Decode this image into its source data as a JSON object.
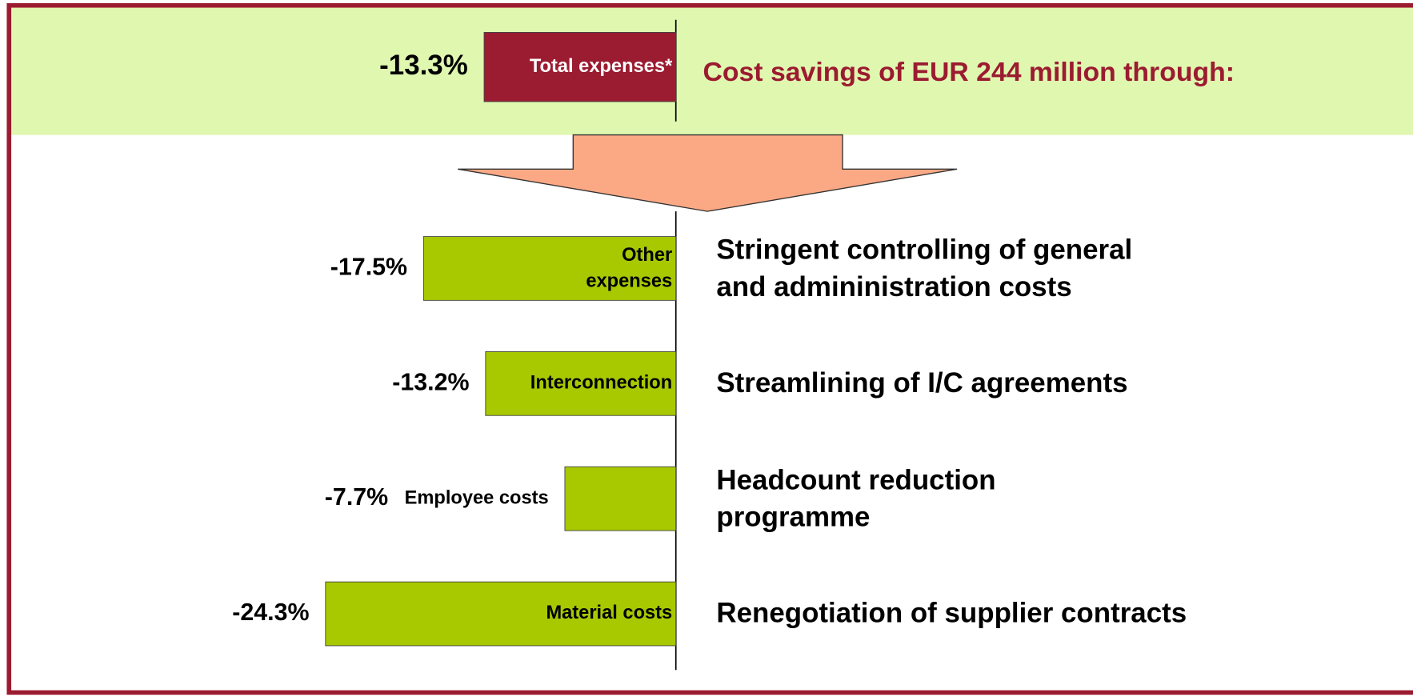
{
  "chart_data": {
    "type": "bar",
    "title": "Cost savings of EUR 244 million through:",
    "total": {
      "category": "Total expenses*",
      "value": -13.3,
      "value_label": "-13.3%",
      "color": "#9b1b30"
    },
    "categories": [
      "Other\nexpenses",
      "Interconnection",
      "Employee costs",
      "Material costs"
    ],
    "values": [
      -17.5,
      -13.2,
      -7.7,
      -24.3
    ],
    "value_labels": [
      "-17.5%",
      "-13.2%",
      "-7.7%",
      "-24.3%"
    ],
    "descriptions": [
      "Stringent controlling of general\nand admininistration costs",
      "Streamlining of I/C agreements",
      "Headcount reduction\nprogramme",
      "Renegotiation of supplier contracts"
    ],
    "color": "#a8c800",
    "xlim": [
      -30,
      0
    ]
  }
}
